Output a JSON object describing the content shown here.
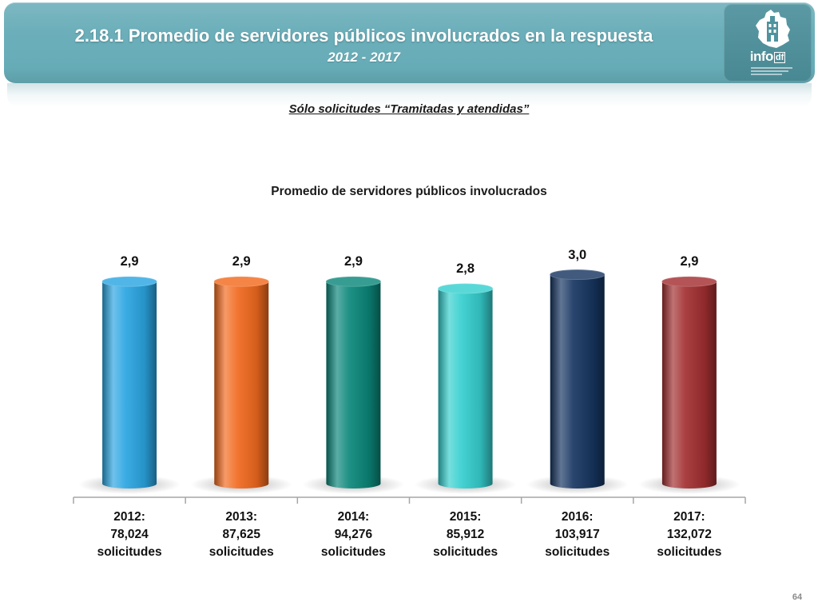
{
  "header": {
    "title": "2.18.1 Promedio de servidores públicos involucrados en la respuesta",
    "subtitle": "2012 - 2017"
  },
  "logo": {
    "icon": "building-emblem-icon",
    "wordmark_main": "info",
    "wordmark_suffix": "df"
  },
  "theme": {
    "banner_color": "#66acb7",
    "logo_panel_color": "#4d919c"
  },
  "filter_note": "Sólo solicitudes “Tramitadas y atendidas”",
  "chart_data": {
    "type": "bar",
    "title": "Promedio de servidores públicos involucrados",
    "categories": [
      "2012:\n78,024\nsolicitudes",
      "2013:\n87,625\nsolicitudes",
      "2014:\n94,276\nsolicitudes",
      "2015:\n85,912\nsolicitudes",
      "2016:\n103,917\nsolicitudes",
      "2017:\n132,072\nsolicitudes"
    ],
    "values": [
      2.9,
      2.9,
      2.9,
      2.8,
      3.0,
      2.9
    ],
    "value_labels": [
      "2,9",
      "2,9",
      "2,9",
      "2,8",
      "3,0",
      "2,9"
    ],
    "colors": [
      "#2ba6e2",
      "#f26a1f",
      "#0b877a",
      "#36cfcf",
      "#173661",
      "#a32f31"
    ],
    "ylim": [
      0,
      3.5
    ],
    "y_axis_visible": false,
    "grid": false
  },
  "page_number": "64"
}
